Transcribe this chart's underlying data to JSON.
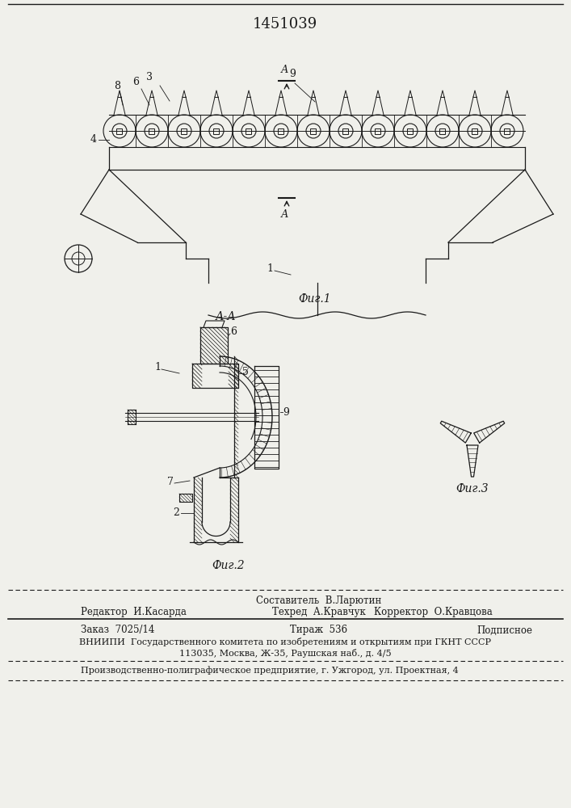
{
  "patent_number": "1451039",
  "fig1_caption": "Фиг.1",
  "fig2_caption": "Фиг.2",
  "fig3_caption": "Фиг.3",
  "bg_color": "#f0f0eb",
  "line_color": "#1a1a1a",
  "hatch_color": "#1a1a1a",
  "footer_col1_row1": "",
  "footer_col2_row1": "Составитель  В.Ларютин",
  "footer_col3_row1": "",
  "footer_col1_row2": "Редактор  И.Касарда",
  "footer_col2_row2": "Техред  А.Кравчук",
  "footer_col3_row2": "Корректор  О.Кравцова",
  "footer_order": "Заказ  7025/14",
  "footer_tirazh": "Тираж  536",
  "footer_podp": "Подписное",
  "footer_vniip1": "ВНИИПИ  Государственного комитета по изобретениям и открытиям при ГКНТ СССР",
  "footer_vniip2": "113035, Москва, Ж-35, Раушская наб., д. 4/5",
  "footer_last": "Производственно-полиграфическое предприятие, г. Ужгород, ул. Проектная, 4"
}
